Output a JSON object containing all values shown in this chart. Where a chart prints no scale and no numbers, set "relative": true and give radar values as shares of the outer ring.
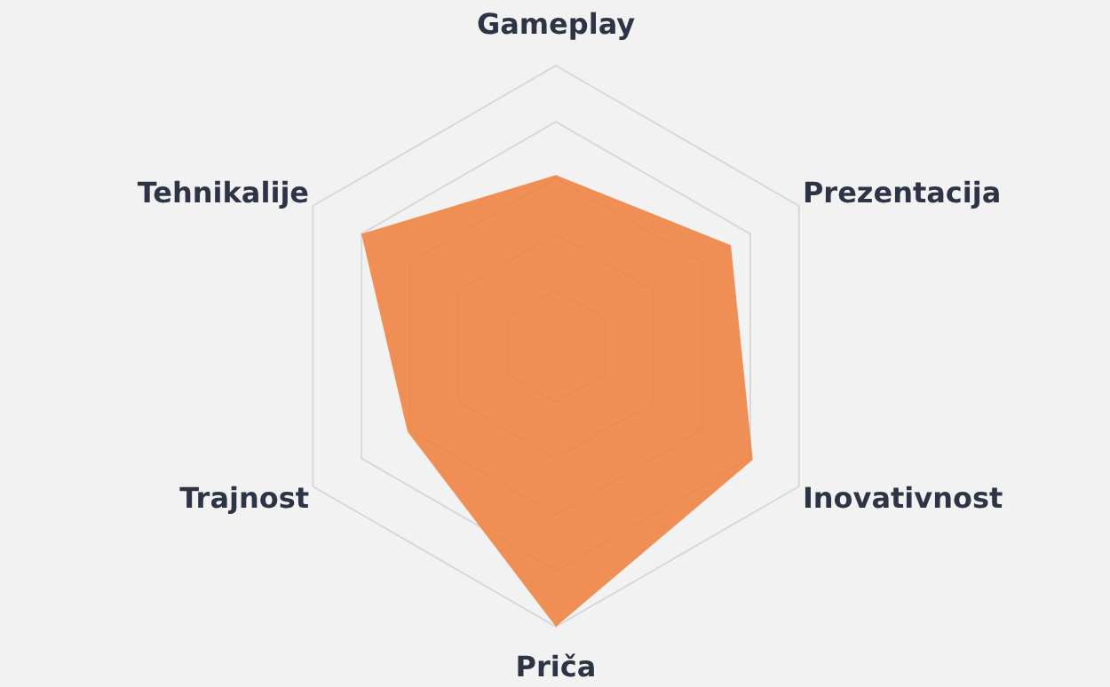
{
  "chart_data": {
    "type": "radar",
    "relative": true,
    "grid": true,
    "categories": [
      "Gameplay",
      "Prezentacija",
      "Inovativnost",
      "Priča",
      "Trajnost",
      "Tehnikalije"
    ],
    "series": [
      {
        "color": "#ef7d3a",
        "values": [
          0.61,
          0.72,
          0.81,
          1.0,
          0.61,
          0.8
        ]
      }
    ]
  }
}
